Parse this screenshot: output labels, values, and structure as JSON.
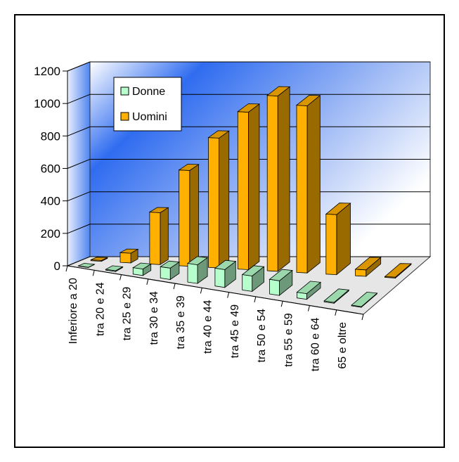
{
  "chart_data": {
    "type": "bar",
    "title": "",
    "xlabel": "",
    "ylabel": "",
    "ylim": [
      0,
      1200
    ],
    "y_ticks": [
      0,
      200,
      400,
      600,
      800,
      1000,
      1200
    ],
    "grid": true,
    "legend_position": "top-left",
    "categories": [
      "Inferiore a 20",
      "tra 20 e 24",
      "tra 25 e 29",
      "tra 30 e 34",
      "tra 35 e 39",
      "tra 40 e 44",
      "tra 45 e 49",
      "tra 50 e 54",
      "tra 55 e 59",
      "tra 60 e 64",
      "65 e oltre"
    ],
    "series": [
      {
        "name": "Donne",
        "color": "#b6ffcc",
        "values": [
          2,
          5,
          40,
          70,
          115,
          110,
          95,
          90,
          35,
          6,
          4
        ]
      },
      {
        "name": "Uomini",
        "color": "#ffb000",
        "values": [
          5,
          60,
          320,
          590,
          800,
          970,
          1080,
          1030,
          370,
          40,
          5
        ]
      }
    ]
  }
}
